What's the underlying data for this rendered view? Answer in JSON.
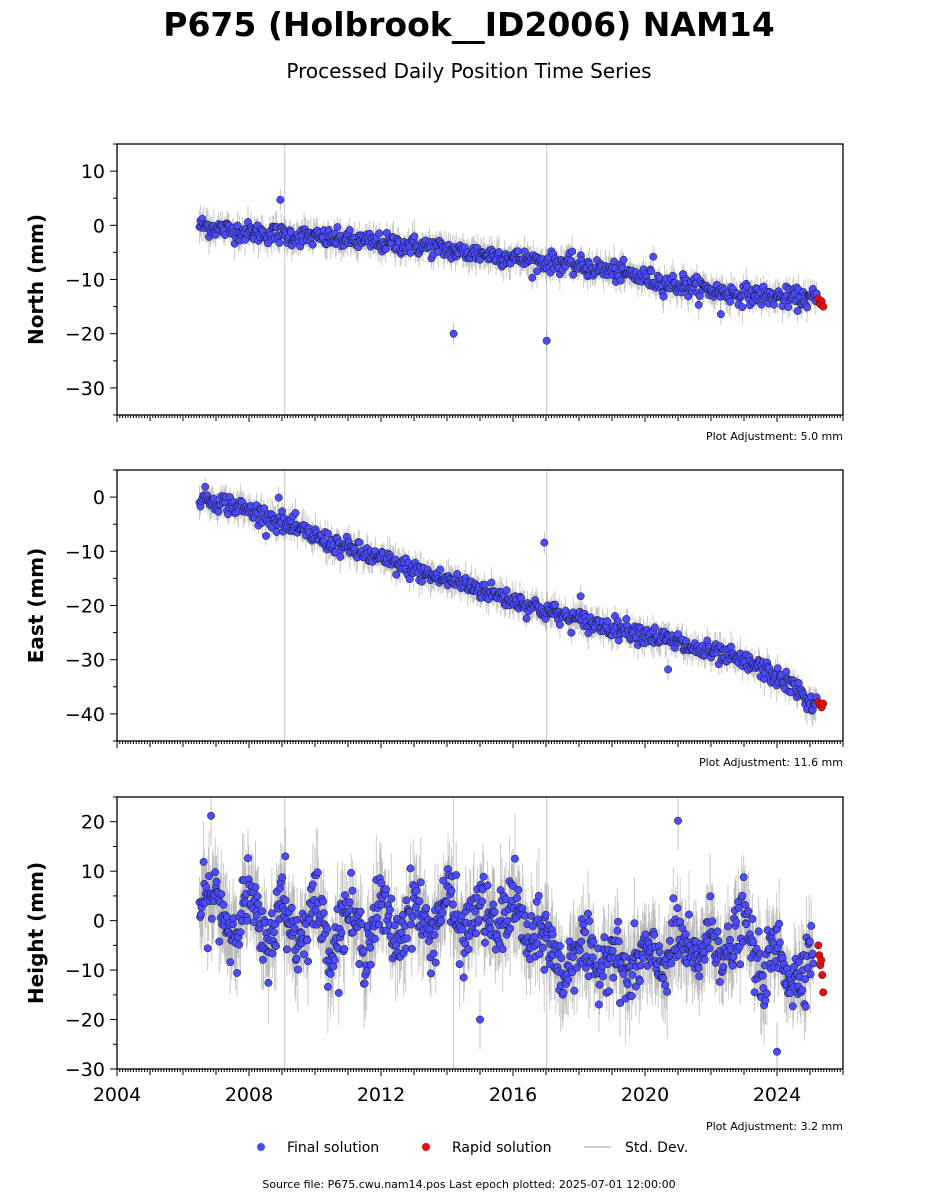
{
  "header": {
    "title": "P675 (Holbrook__ID2006) NAM14",
    "subtitle": "Processed Daily Position Time Series"
  },
  "colors": {
    "final": "#4b4bff",
    "rapid": "#e01010",
    "std_dev": "#a0a0a0",
    "outline": "#000000"
  },
  "chart_data": [
    {
      "type": "scatter",
      "panel": "north",
      "ylabel": "North (mm)",
      "xlim": [
        2004.0,
        2026.0
      ],
      "ylim": [
        -35,
        15
      ],
      "yticks": [
        10,
        0,
        -10,
        -20,
        -30
      ],
      "ytick_labels": [
        "10",
        "0",
        "−10",
        "−20",
        "−30"
      ],
      "grid": false,
      "adjustment_label": "Plot Adjustment: 5.0 mm",
      "gap_lines_x": [
        2009.08,
        2017.02
      ],
      "series": [
        {
          "name": "Final solution",
          "x": [
            2006.5,
            2007.5,
            2008.5,
            2009.5,
            2010.5,
            2011.5,
            2012.5,
            2013.5,
            2014.5,
            2015.5,
            2016.5,
            2017.5,
            2018.5,
            2019.5,
            2020.5,
            2021.5,
            2022.5,
            2023.5,
            2024.5,
            2025.1
          ],
          "y": [
            0,
            -1,
            -1.5,
            -2,
            -2.5,
            -3,
            -3.5,
            -4,
            -5,
            -5.5,
            -6.5,
            -7,
            -8,
            -9,
            -10.5,
            -11.5,
            -12.5,
            -13,
            -13.5,
            -13.5
          ],
          "outliers": [
            [
              2008.95,
              4.7
            ],
            [
              2014.2,
              -20.0
            ],
            [
              2017.02,
              -21.3
            ],
            [
              2020.25,
              -5.8
            ],
            [
              2021.15,
              -9.0
            ],
            [
              2022.3,
              -16.4
            ]
          ]
        },
        {
          "name": "Rapid solution",
          "x": [
            2025.25,
            2025.3,
            2025.35,
            2025.4
          ],
          "y": [
            -13.5,
            -14.5,
            -14.0,
            -15.0
          ]
        }
      ]
    },
    {
      "type": "scatter",
      "panel": "east",
      "ylabel": "East (mm)",
      "xlim": [
        2004.0,
        2026.0
      ],
      "ylim": [
        -45,
        5
      ],
      "yticks": [
        0,
        -10,
        -20,
        -30,
        -40
      ],
      "ytick_labels": [
        "0",
        "−10",
        "−20",
        "−30",
        "−40"
      ],
      "grid": false,
      "adjustment_label": "Plot Adjustment: 11.6 mm",
      "gap_lines_x": [
        2009.08,
        2017.02
      ],
      "series": [
        {
          "name": "Final solution",
          "x": [
            2006.5,
            2007.5,
            2008.5,
            2009.5,
            2010.5,
            2011.5,
            2012.5,
            2013.5,
            2014.5,
            2015.5,
            2016.5,
            2017.5,
            2018.5,
            2019.5,
            2020.5,
            2021.5,
            2022.5,
            2023.5,
            2024.5,
            2025.1
          ],
          "y": [
            0,
            -1.5,
            -3.5,
            -6,
            -8.5,
            -10.5,
            -12.5,
            -14.5,
            -16,
            -18,
            -20,
            -22,
            -23.5,
            -24.5,
            -26,
            -28,
            -29.5,
            -31.5,
            -35,
            -38.5
          ],
          "outliers": [
            [
              2008.9,
              -0.1
            ],
            [
              2016.95,
              -8.4
            ],
            [
              2018.05,
              -18.3
            ],
            [
              2020.7,
              -31.8
            ],
            [
              2021.0,
              -25.3
            ]
          ]
        },
        {
          "name": "Rapid solution",
          "x": [
            2025.25,
            2025.3,
            2025.35,
            2025.4
          ],
          "y": [
            -37.8,
            -38.3,
            -38.8,
            -38.1
          ]
        }
      ]
    },
    {
      "type": "scatter",
      "panel": "height",
      "ylabel": "Height (mm)",
      "xlim": [
        2004.0,
        2026.0
      ],
      "ylim": [
        -30,
        25
      ],
      "yticks": [
        20,
        10,
        0,
        -10,
        -20,
        -30
      ],
      "ytick_labels": [
        "20",
        "10",
        "0",
        "−10",
        "−20",
        "−30"
      ],
      "xticks": [
        2004,
        2008,
        2012,
        2016,
        2020,
        2024
      ],
      "xtick_labels": [
        "2004",
        "2008",
        "2012",
        "2016",
        "2020",
        "2024"
      ],
      "grid": false,
      "adjustment_label": "Plot Adjustment: 3.2 mm",
      "gap_lines_x": [
        2009.08,
        2014.2,
        2017.02
      ],
      "series": [
        {
          "name": "Final solution",
          "x": [
            2006.5,
            2007.0,
            2007.5,
            2008.0,
            2008.5,
            2009.0,
            2009.5,
            2010.0,
            2010.5,
            2011.0,
            2011.5,
            2012.0,
            2012.5,
            2013.0,
            2013.5,
            2014.0,
            2014.5,
            2015.0,
            2015.5,
            2016.0,
            2016.5,
            2017.0,
            2017.5,
            2018.0,
            2018.5,
            2019.0,
            2019.5,
            2020.0,
            2020.5,
            2021.0,
            2021.5,
            2022.0,
            2022.5,
            2023.0,
            2023.5,
            2024.0,
            2024.5,
            2025.0
          ],
          "y": [
            3,
            5,
            -3,
            6,
            -6,
            4,
            -5,
            5,
            -7,
            3,
            -6,
            4,
            -5,
            5,
            -4,
            6,
            -4,
            4,
            -3,
            5,
            -5,
            -2,
            -12,
            -4,
            -10,
            -5,
            -12,
            -6,
            -10,
            -3,
            -9,
            -2,
            -8,
            1,
            -12,
            -5,
            -13,
            -6
          ],
          "outliers": [
            [
              2006.85,
              21.2
            ],
            [
              2009.1,
              13.0
            ],
            [
              2015.0,
              -20.0
            ],
            [
              2021.0,
              20.2
            ],
            [
              2024.0,
              -26.5
            ]
          ]
        },
        {
          "name": "Rapid solution",
          "x": [
            2025.25,
            2025.28,
            2025.31,
            2025.34,
            2025.37,
            2025.4
          ],
          "y": [
            -5,
            -7,
            -9,
            -8,
            -11,
            -14.5
          ]
        }
      ]
    }
  ],
  "legend": {
    "placement": "bottom-center",
    "items": [
      {
        "label": "Final solution",
        "marker": "dot",
        "color": "#4b4bff"
      },
      {
        "label": "Rapid solution",
        "marker": "dot",
        "color": "#e01010"
      },
      {
        "label": "Std. Dev.",
        "marker": "line",
        "color": "#c0c0c0"
      }
    ]
  },
  "footer": {
    "source": "Source file: P675.cwu.nam14.pos  Last epoch plotted: 2025-07-01 12:00:00"
  }
}
